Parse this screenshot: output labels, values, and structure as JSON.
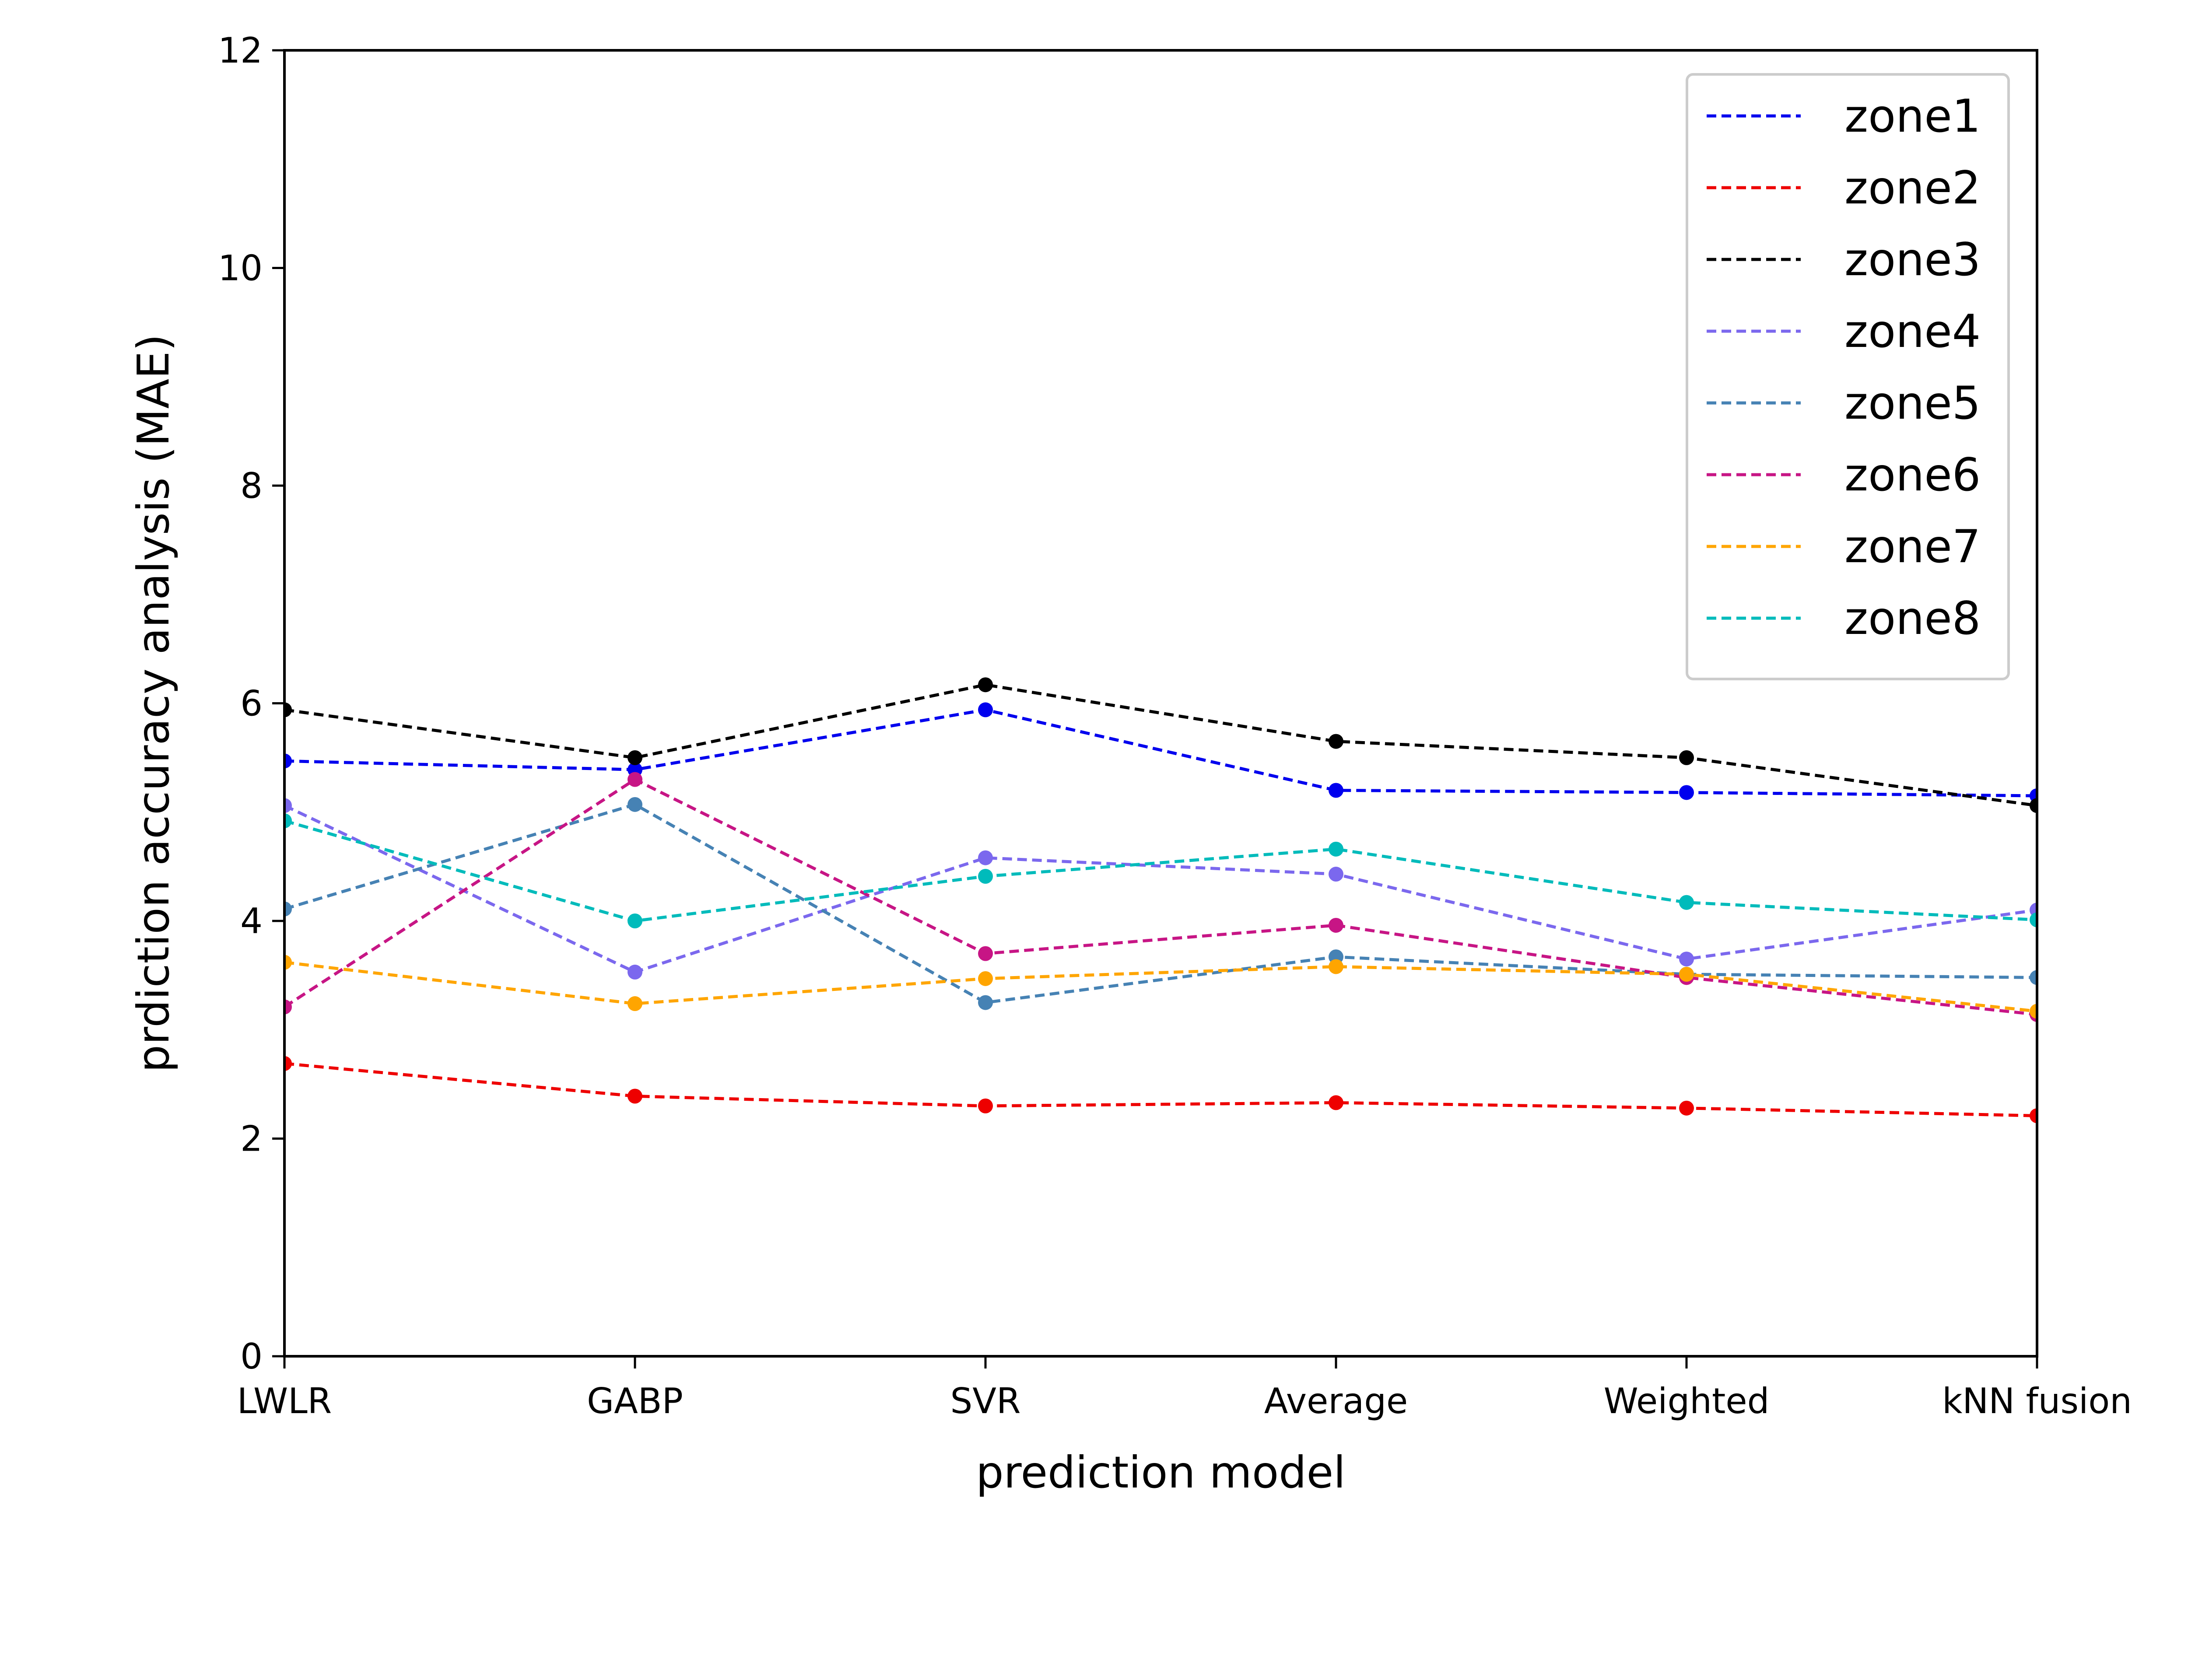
{
  "chart_data": {
    "type": "line",
    "categories": [
      "LWLR",
      "GABP",
      "SVR",
      "Average",
      "Weighted",
      "kNN fusion"
    ],
    "xlabel": "prediction model",
    "ylabel": "prdiction accuracy analysis (MAE)",
    "ylim": [
      0,
      12
    ],
    "yticks": [
      "0",
      "2",
      "4",
      "6",
      "8",
      "10",
      "12"
    ],
    "grid": false,
    "legend_position": "top-right",
    "series": [
      {
        "name": "zone1",
        "color": "#0000ee",
        "values": [
          5.47,
          5.39,
          5.94,
          5.2,
          5.18,
          5.15
        ]
      },
      {
        "name": "zone2",
        "color": "#ee0000",
        "values": [
          2.69,
          2.39,
          2.3,
          2.33,
          2.28,
          2.21
        ]
      },
      {
        "name": "zone3",
        "color": "#000000",
        "values": [
          5.94,
          5.5,
          6.17,
          5.65,
          5.5,
          5.06
        ]
      },
      {
        "name": "zone4",
        "color": "#7b68ee",
        "values": [
          5.06,
          3.53,
          4.58,
          4.43,
          3.65,
          4.1
        ]
      },
      {
        "name": "zone5",
        "color": "#4682b4",
        "values": [
          4.11,
          5.07,
          3.25,
          3.67,
          3.51,
          3.48
        ]
      },
      {
        "name": "zone6",
        "color": "#c71585",
        "values": [
          3.21,
          5.3,
          3.7,
          3.96,
          3.48,
          3.14
        ]
      },
      {
        "name": "zone7",
        "color": "#ffa500",
        "values": [
          3.62,
          3.24,
          3.47,
          3.58,
          3.51,
          3.17
        ]
      },
      {
        "name": "zone8",
        "color": "#00bbbb",
        "values": [
          4.92,
          4.0,
          4.41,
          4.66,
          4.17,
          4.01
        ]
      }
    ]
  }
}
